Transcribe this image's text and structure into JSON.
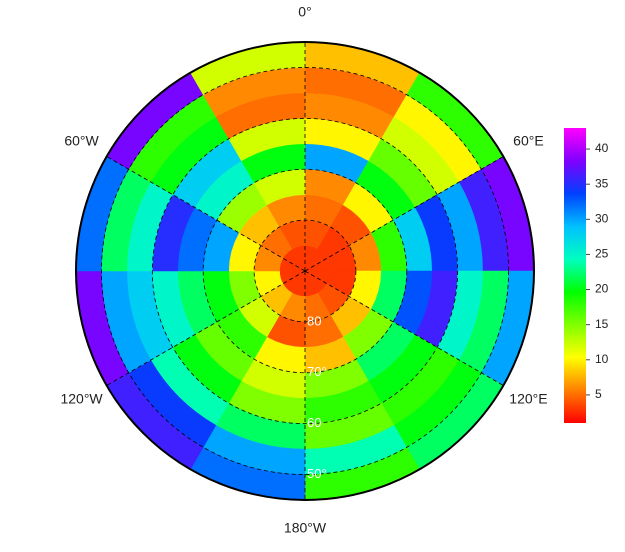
{
  "chart_data": {
    "type": "polar-heatmap",
    "projection": "south-polar-stereographic",
    "lat_edges": [
      -90,
      -85,
      -80,
      -75,
      -70,
      -65,
      -60,
      -55,
      -50,
      -45
    ],
    "lon_edges": [
      0,
      30,
      60,
      90,
      120,
      150,
      180,
      210,
      240,
      270,
      300,
      330,
      360
    ],
    "values": [
      [
        3,
        3,
        3,
        3,
        3,
        3,
        3,
        3,
        3,
        3,
        3,
        3
      ],
      [
        4,
        3,
        3,
        3,
        4,
        5,
        6,
        8,
        10,
        6,
        5,
        4
      ],
      [
        5,
        4,
        6,
        10,
        8,
        5,
        4,
        12,
        15,
        10,
        8,
        6
      ],
      [
        6,
        10,
        18,
        22,
        15,
        8,
        10,
        18,
        20,
        30,
        14,
        12
      ],
      [
        30,
        20,
        28,
        33,
        22,
        15,
        12,
        16,
        22,
        32,
        25,
        20
      ],
      [
        10,
        16,
        34,
        36,
        20,
        18,
        15,
        20,
        25,
        35,
        28,
        12
      ],
      [
        6,
        12,
        30,
        25,
        18,
        16,
        22,
        24,
        28,
        25,
        20,
        5
      ],
      [
        5,
        10,
        36,
        22,
        20,
        24,
        30,
        34,
        30,
        22,
        18,
        6
      ],
      [
        8,
        18,
        38,
        30,
        22,
        18,
        32,
        36,
        38,
        32,
        38,
        12
      ]
    ],
    "lonticks": [
      {
        "value": 0,
        "label": "0°"
      },
      {
        "value": 60,
        "label": "60°E"
      },
      {
        "value": 120,
        "label": "120°E"
      },
      {
        "value": 180,
        "label": "180°W"
      },
      {
        "value": 240,
        "label": "120°W"
      },
      {
        "value": 300,
        "label": "60°W"
      }
    ],
    "latticks": [
      {
        "value": -80,
        "label": "80"
      },
      {
        "value": -70,
        "label": "70°"
      },
      {
        "value": -60,
        "label": "60"
      },
      {
        "value": -50,
        "label": "50°"
      }
    ],
    "clim": [
      1,
      43
    ],
    "cticks": [
      5,
      10,
      15,
      20,
      25,
      30,
      35,
      40
    ],
    "colorscale": [
      "#ff0000",
      "#ff8000",
      "#ffff00",
      "#80ff00",
      "#00ff00",
      "#00ffc0",
      "#00c0ff",
      "#0040ff",
      "#8000ff",
      "#ff00ff"
    ]
  }
}
